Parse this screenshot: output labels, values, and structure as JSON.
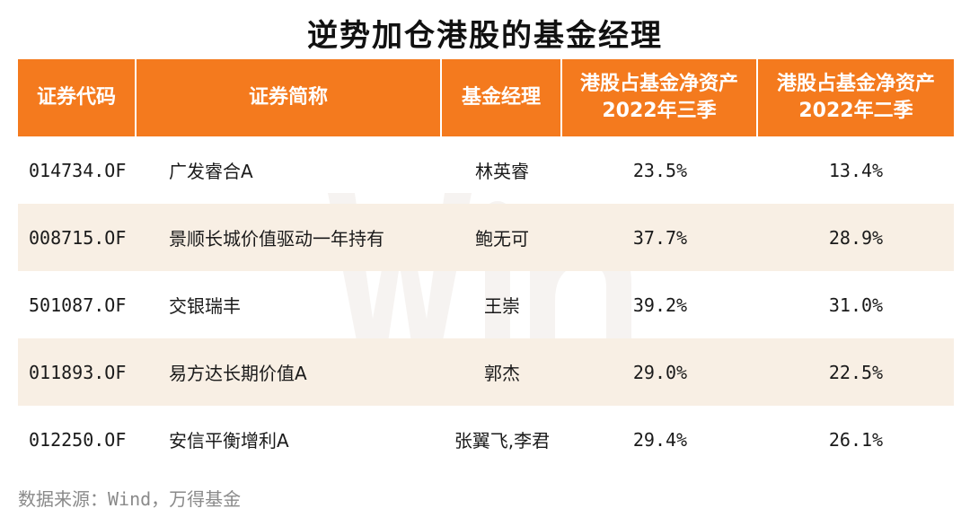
{
  "title": "逆势加仓港股的基金经理",
  "columns": {
    "code": "证券代码",
    "name": "证券简称",
    "manager": "基金经理",
    "q3_line1": "港股占基金净资产",
    "q3_line2": "2022年三季",
    "q2_line1": "港股占基金净资产",
    "q2_line2": "2022年二季"
  },
  "rows": [
    {
      "code": "014734.OF",
      "name": "广发睿合A",
      "manager": "林英睿",
      "q3": "23.5%",
      "q2": "13.4%"
    },
    {
      "code": "008715.OF",
      "name": "景顺长城价值驱动一年持有",
      "manager": "鲍无可",
      "q3": "37.7%",
      "q2": "28.9%"
    },
    {
      "code": "501087.OF",
      "name": "交银瑞丰",
      "manager": "王崇",
      "q3": "39.2%",
      "q2": "31.0%"
    },
    {
      "code": "011893.OF",
      "name": "易方达长期价值A",
      "manager": "郭杰",
      "q3": "29.0%",
      "q2": "22.5%"
    },
    {
      "code": "012250.OF",
      "name": "安信平衡增利A",
      "manager": "张翼飞,李君",
      "q3": "29.4%",
      "q2": "26.1%"
    }
  ],
  "source": "数据来源：Wind，万得基金",
  "colors": {
    "header_bg": "#f47a1e",
    "alt_row_bg": "#f8efe4"
  }
}
